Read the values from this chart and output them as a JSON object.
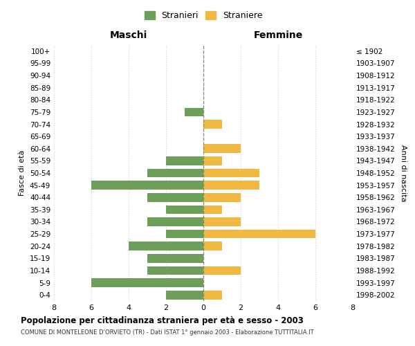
{
  "age_groups": [
    "100+",
    "95-99",
    "90-94",
    "85-89",
    "80-84",
    "75-79",
    "70-74",
    "65-69",
    "60-64",
    "55-59",
    "50-54",
    "45-49",
    "40-44",
    "35-39",
    "30-34",
    "25-29",
    "20-24",
    "15-19",
    "10-14",
    "5-9",
    "0-4"
  ],
  "birth_years": [
    "≤ 1902",
    "1903-1907",
    "1908-1912",
    "1913-1917",
    "1918-1922",
    "1923-1927",
    "1928-1932",
    "1933-1937",
    "1938-1942",
    "1943-1947",
    "1948-1952",
    "1953-1957",
    "1958-1962",
    "1963-1967",
    "1968-1972",
    "1973-1977",
    "1978-1982",
    "1983-1987",
    "1988-1992",
    "1993-1997",
    "1998-2002"
  ],
  "maschi": [
    0,
    0,
    0,
    0,
    0,
    1,
    0,
    0,
    0,
    2,
    3,
    6,
    3,
    2,
    3,
    2,
    4,
    3,
    3,
    6,
    2
  ],
  "femmine": [
    0,
    0,
    0,
    0,
    0,
    0,
    1,
    0,
    2,
    1,
    3,
    3,
    2,
    1,
    2,
    6,
    1,
    0,
    2,
    0,
    1
  ],
  "color_maschi": "#6d9e5a",
  "color_femmine": "#f0b942",
  "bar_height": 0.72,
  "xlim": 8,
  "xlabel_left": "Maschi",
  "xlabel_right": "Femmine",
  "ylabel": "Fasce di età",
  "ylabel_right": "Anni di nascita",
  "legend_stranieri": "Stranieri",
  "legend_straniere": "Straniere",
  "title": "Popolazione per cittadinanza straniera per età e sesso - 2003",
  "subtitle": "COMUNE DI MONTELEONE D’ORVIETO (TR) - Dati ISTAT 1° gennaio 2003 - Elaborazione TUTTITALIA.IT",
  "bg_color": "#ffffff",
  "grid_color": "#cccccc",
  "centerline_color": "#888866"
}
